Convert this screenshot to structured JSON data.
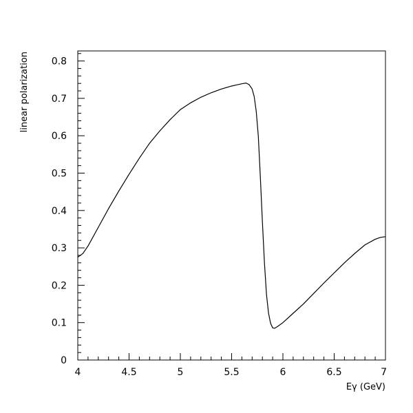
{
  "chart_data": {
    "type": "line",
    "xlabel": "Eγ (GeV)",
    "ylabel": "linear polarization",
    "xlim": [
      4,
      7
    ],
    "ylim": [
      0,
      0.825
    ],
    "x_ticks": [
      "4",
      "4.5",
      "5",
      "5.5",
      "6",
      "6.5",
      "7"
    ],
    "y_ticks": [
      "0",
      "0.1",
      "0.2",
      "0.3",
      "0.4",
      "0.5",
      "0.6",
      "0.7",
      "0.8"
    ],
    "grid": false,
    "line_color": "#000000",
    "series": [
      {
        "x": [
          4.0,
          4.05,
          4.1,
          4.2,
          4.3,
          4.4,
          4.5,
          4.6,
          4.7,
          4.8,
          4.9,
          5.0,
          5.1,
          5.2,
          5.3,
          5.4,
          5.5,
          5.55,
          5.6,
          5.64,
          5.67,
          5.7,
          5.72,
          5.74,
          5.76,
          5.78,
          5.8,
          5.82,
          5.84,
          5.86,
          5.88,
          5.9,
          5.92,
          5.95,
          6.0,
          6.1,
          6.2,
          6.3,
          6.4,
          6.5,
          6.6,
          6.7,
          6.8,
          6.9,
          6.95,
          7.0
        ],
        "y": [
          0.275,
          0.285,
          0.305,
          0.355,
          0.405,
          0.452,
          0.497,
          0.54,
          0.58,
          0.613,
          0.643,
          0.67,
          0.688,
          0.703,
          0.715,
          0.725,
          0.733,
          0.736,
          0.739,
          0.741,
          0.737,
          0.725,
          0.705,
          0.665,
          0.6,
          0.49,
          0.37,
          0.26,
          0.175,
          0.125,
          0.098,
          0.086,
          0.085,
          0.09,
          0.1,
          0.125,
          0.15,
          0.178,
          0.206,
          0.233,
          0.26,
          0.285,
          0.308,
          0.323,
          0.328,
          0.33
        ]
      }
    ]
  }
}
